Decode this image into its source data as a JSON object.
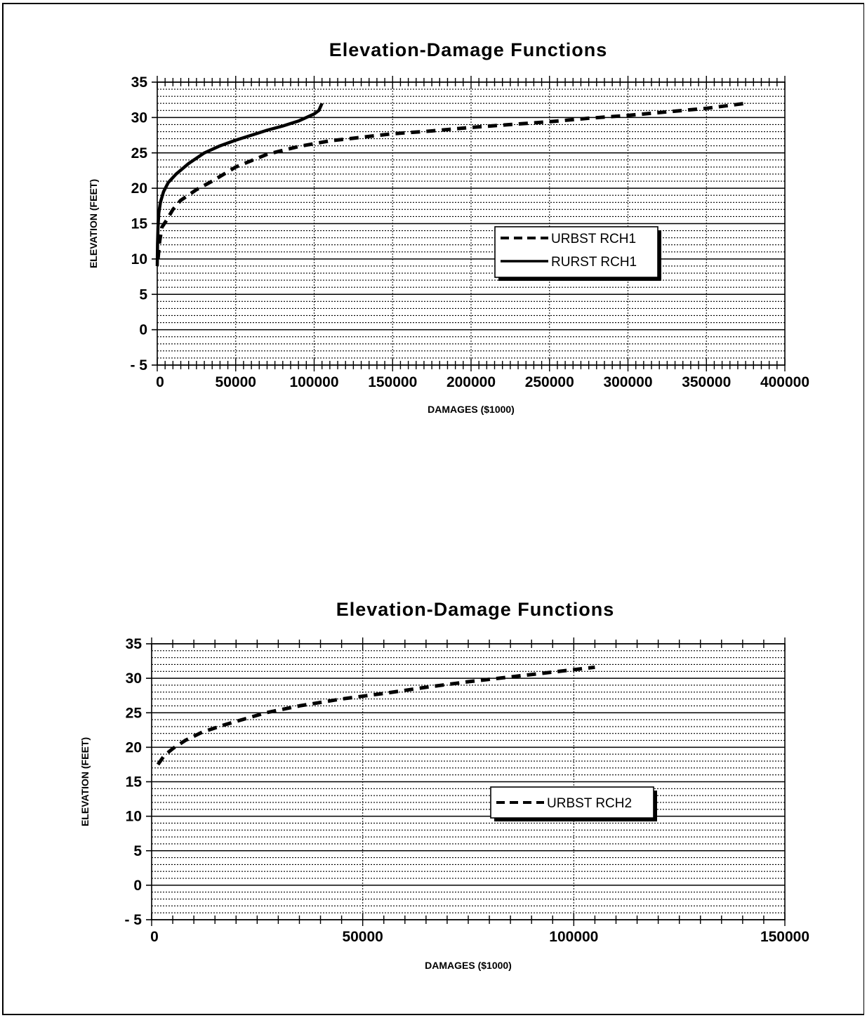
{
  "chart_data": [
    {
      "type": "line",
      "title": "Elevation-Damage Functions",
      "xlabel": "DAMAGES ($1000)",
      "ylabel": "ELEVATION (FEET)",
      "xlim": [
        0,
        400000
      ],
      "ylim": [
        -5,
        35
      ],
      "x_ticks": [
        "0",
        "50000",
        "100000",
        "150000",
        "200000",
        "250000",
        "300000",
        "350000",
        "400000"
      ],
      "y_ticks": [
        "35",
        "30",
        "25",
        "20",
        "15",
        "10",
        "5",
        "0",
        "- 5"
      ],
      "grid": true,
      "legend_position": "right-center",
      "series": [
        {
          "name": "URBST RCH1",
          "style": "dashed",
          "points": [
            [
              500,
              10
            ],
            [
              1500,
              12.5
            ],
            [
              3000,
              14.5
            ],
            [
              6000,
              15.5
            ],
            [
              10000,
              17
            ],
            [
              15000,
              18.3
            ],
            [
              25000,
              19.8
            ],
            [
              35000,
              21
            ],
            [
              50000,
              23
            ],
            [
              70000,
              24.8
            ],
            [
              90000,
              25.9
            ],
            [
              110000,
              26.7
            ],
            [
              130000,
              27.2
            ],
            [
              150000,
              27.7
            ],
            [
              175000,
              28.1
            ],
            [
              200000,
              28.6
            ],
            [
              225000,
              29
            ],
            [
              250000,
              29.4
            ],
            [
              275000,
              29.9
            ],
            [
              300000,
              30.3
            ],
            [
              325000,
              30.8
            ],
            [
              350000,
              31.3
            ],
            [
              375000,
              32
            ]
          ]
        },
        {
          "name": "RURST RCH1",
          "style": "solid",
          "points": [
            [
              0,
              9
            ],
            [
              200,
              12
            ],
            [
              500,
              14.5
            ],
            [
              1000,
              16.5
            ],
            [
              2000,
              18
            ],
            [
              4000,
              19.5
            ],
            [
              7000,
              20.8
            ],
            [
              12000,
              22
            ],
            [
              20000,
              23.5
            ],
            [
              30000,
              25
            ],
            [
              40000,
              26
            ],
            [
              50000,
              26.8
            ],
            [
              60000,
              27.5
            ],
            [
              70000,
              28.2
            ],
            [
              80000,
              28.8
            ],
            [
              90000,
              29.5
            ],
            [
              100000,
              30.5
            ],
            [
              103000,
              31
            ],
            [
              105000,
              32
            ]
          ]
        }
      ]
    },
    {
      "type": "line",
      "title": "Elevation-Damage Functions",
      "xlabel": "DAMAGES ($1000)",
      "ylabel": "ELEVATION (FEET)",
      "xlim": [
        0,
        150000
      ],
      "ylim": [
        -5,
        35
      ],
      "x_ticks": [
        "0",
        "50000",
        "100000",
        "150000"
      ],
      "y_ticks": [
        "35",
        "30",
        "25",
        "20",
        "15",
        "10",
        "5",
        "0",
        "- 5"
      ],
      "grid": true,
      "legend_position": "right-center",
      "series": [
        {
          "name": "URBST RCH2",
          "style": "dashed",
          "points": [
            [
              1500,
              17.5
            ],
            [
              3000,
              18.8
            ],
            [
              5000,
              19.8
            ],
            [
              8000,
              21
            ],
            [
              12000,
              22.2
            ],
            [
              17000,
              23.2
            ],
            [
              22000,
              24.1
            ],
            [
              27000,
              25
            ],
            [
              35000,
              26
            ],
            [
              45000,
              27
            ],
            [
              55000,
              27.8
            ],
            [
              65000,
              28.7
            ],
            [
              75000,
              29.5
            ],
            [
              85000,
              30.2
            ],
            [
              95000,
              30.9
            ],
            [
              105000,
              31.6
            ]
          ]
        }
      ]
    }
  ]
}
